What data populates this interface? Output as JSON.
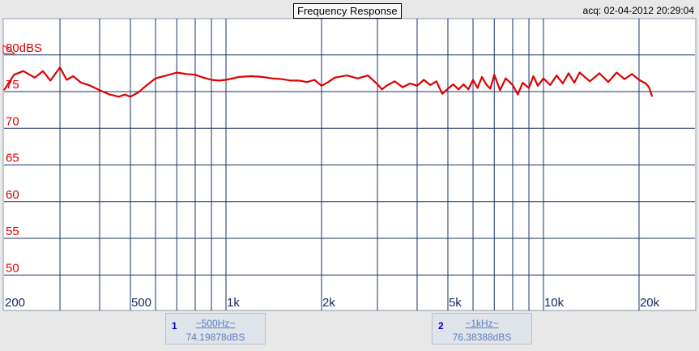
{
  "header": {
    "title": "Frequency Response",
    "acq": "acq: 02-04-2012 20:29:04"
  },
  "chart_data": {
    "type": "line",
    "title": "Frequency Response",
    "x_scale": "log",
    "xlim": [
      200,
      30000
    ],
    "ylim": [
      50,
      85
    ],
    "y_unit_label": "80dBS",
    "y_ticks": [
      {
        "value": 80,
        "label": "80dBS"
      },
      {
        "value": 75,
        "label": "75"
      },
      {
        "value": 70,
        "label": "70"
      },
      {
        "value": 65,
        "label": "65"
      },
      {
        "value": 60,
        "label": "60"
      },
      {
        "value": 55,
        "label": "55"
      },
      {
        "value": 50,
        "label": "50"
      }
    ],
    "x_tick_labels": [
      {
        "value": 200,
        "label": "200"
      },
      {
        "value": 500,
        "label": "500"
      },
      {
        "value": 1000,
        "label": "1k"
      },
      {
        "value": 2000,
        "label": "2k"
      },
      {
        "value": 5000,
        "label": "5k"
      },
      {
        "value": 10000,
        "label": "10k"
      },
      {
        "value": 20000,
        "label": "20k"
      }
    ],
    "x_grid": [
      300,
      400,
      500,
      600,
      700,
      800,
      900,
      1000,
      2000,
      3000,
      4000,
      5000,
      6000,
      7000,
      8000,
      9000,
      10000,
      20000
    ],
    "grid": true,
    "series": [
      {
        "color": "#dd0000",
        "x": [
          200,
          215,
          230,
          250,
          265,
          280,
          300,
          315,
          330,
          350,
          370,
          400,
          430,
          460,
          480,
          500,
          530,
          560,
          600,
          650,
          700,
          750,
          800,
          850,
          900,
          950,
          1000,
          1100,
          1200,
          1300,
          1400,
          1500,
          1600,
          1700,
          1800,
          1900,
          2000,
          2100,
          2200,
          2400,
          2600,
          2800,
          3000,
          3100,
          3200,
          3400,
          3600,
          3800,
          4000,
          4200,
          4400,
          4600,
          4800,
          5000,
          5200,
          5400,
          5600,
          5800,
          6000,
          6200,
          6400,
          6600,
          6800,
          7000,
          7300,
          7600,
          8000,
          8300,
          8600,
          9000,
          9300,
          9600,
          10000,
          10500,
          11000,
          11500,
          12000,
          12500,
          13000,
          14000,
          15000,
          16000,
          17000,
          18000,
          19000,
          20000,
          21000,
          21500,
          22000
        ],
        "y": [
          75.2,
          77.3,
          77.8,
          76.9,
          77.8,
          76.5,
          78.3,
          76.6,
          77.1,
          76.2,
          75.9,
          75.2,
          74.6,
          74.3,
          74.6,
          74.3,
          74.9,
          75.8,
          76.8,
          77.2,
          77.6,
          77.4,
          77.3,
          76.9,
          76.6,
          76.5,
          76.6,
          77.0,
          77.1,
          77.0,
          76.8,
          76.7,
          76.5,
          76.5,
          76.3,
          76.6,
          75.8,
          76.3,
          76.9,
          77.2,
          76.8,
          77.2,
          76.0,
          75.3,
          75.8,
          76.4,
          75.6,
          76.1,
          75.8,
          76.6,
          75.9,
          76.4,
          74.7,
          75.4,
          76.0,
          75.3,
          76.0,
          75.3,
          76.6,
          75.5,
          77.0,
          76.0,
          75.4,
          77.3,
          75.2,
          76.8,
          75.9,
          74.6,
          76.2,
          75.5,
          77.1,
          75.8,
          76.8,
          75.9,
          77.2,
          76.1,
          77.5,
          76.2,
          77.6,
          76.4,
          77.5,
          76.3,
          77.6,
          76.7,
          77.4,
          76.6,
          76.1,
          75.6,
          74.3
        ]
      }
    ]
  },
  "cursors": [
    {
      "num": "1",
      "freq": "~500Hz~",
      "value": "74.19878dBS"
    },
    {
      "num": "2",
      "freq": "~1kHz~",
      "value": "76.38388dBS"
    }
  ]
}
